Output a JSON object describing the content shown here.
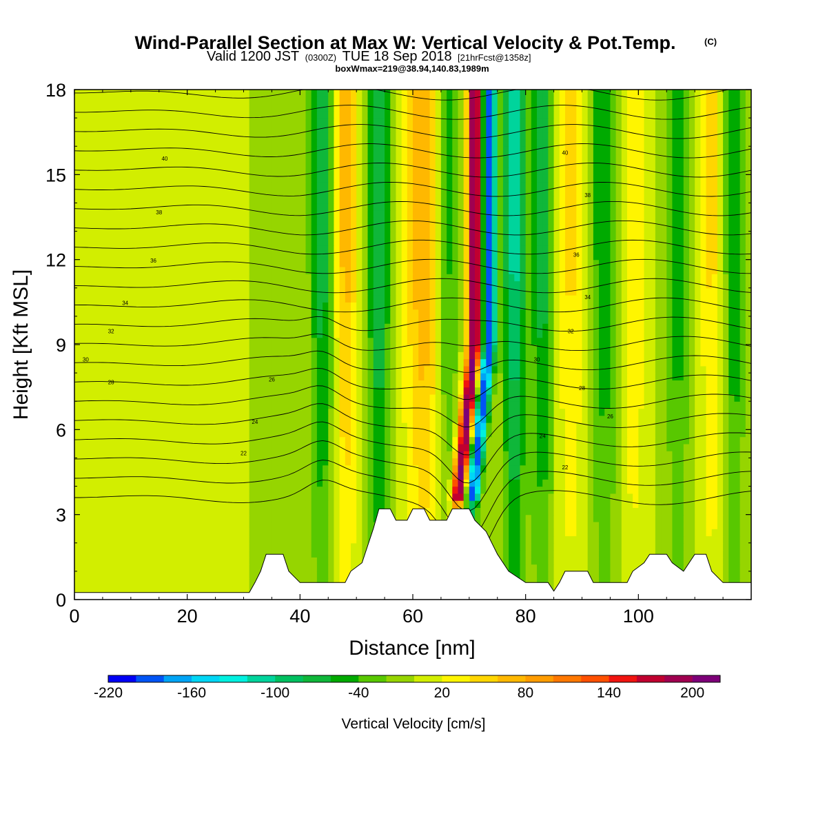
{
  "title": {
    "main": "Wind-Parallel Section at Max W: Vertical Velocity & Pot.Temp.",
    "mark": "(C)",
    "valid_prefix": "Valid 1200 JST",
    "valid_utc": "(0300Z)",
    "valid_date": "TUE 18 Sep 2018",
    "forecast": "[21hrFcst@1358z]",
    "box": "boxWmax=219@38.94,140.83,1989m"
  },
  "chart_data": {
    "type": "heatmap",
    "title": "Wind-Parallel Section at Max W: Vertical Velocity & Pot.Temp.",
    "xlabel": "Distance [nm]",
    "ylabel": "Height [Kft MSL]",
    "xlim": [
      0,
      120
    ],
    "ylim": [
      0,
      18
    ],
    "x_ticks": [
      0,
      20,
      40,
      60,
      80,
      100
    ],
    "y_ticks": [
      0,
      3,
      6,
      9,
      12,
      15,
      18
    ],
    "colorbar": {
      "title": "Vertical Velocity [cm/s]",
      "min": -220,
      "max": 220,
      "step": 20,
      "tick_values": [
        -220,
        -160,
        -100,
        -40,
        20,
        80,
        140,
        200
      ],
      "colors": [
        "#0000f5",
        "#0054f5",
        "#00a4f5",
        "#00d6f5",
        "#00f0e0",
        "#00d49c",
        "#00c060",
        "#0fb73a",
        "#00aa00",
        "#58c800",
        "#96d500",
        "#d2ee00",
        "#fff500",
        "#ffd600",
        "#ffb800",
        "#ff9c00",
        "#ff7800",
        "#ff5000",
        "#f01410",
        "#c00030",
        "#a00050",
        "#7d0078"
      ]
    },
    "w_field": {
      "description_units": "cm/s",
      "background": 0,
      "features": [
        {
          "x": 44,
          "w": -75,
          "sx": 2.2
        },
        {
          "x": 48,
          "w": 70,
          "sx": 2.2
        },
        {
          "x": 54,
          "w": -85,
          "sx": 2.0
        },
        {
          "x": 62,
          "w": 80,
          "sx": 3.5
        },
        {
          "x": 66,
          "w": -60,
          "sx": 2.0
        },
        {
          "x": 71,
          "w": 210,
          "sx": 1.3
        },
        {
          "x": 73.5,
          "w": -200,
          "sx": 1.2
        },
        {
          "x": 78,
          "w": -110,
          "sx": 2.0
        },
        {
          "x": 83,
          "w": -75,
          "sx": 2.0
        },
        {
          "x": 88,
          "w": 45,
          "sx": 2.5
        },
        {
          "x": 94,
          "w": -60,
          "sx": 2.5
        },
        {
          "x": 99,
          "w": 40,
          "sx": 2.5
        },
        {
          "x": 107,
          "w": -55,
          "sx": 2.0
        },
        {
          "x": 113,
          "w": 45,
          "sx": 2.0
        },
        {
          "x": 117,
          "w": -60,
          "sx": 1.8
        }
      ]
    },
    "theta_contours": {
      "units": "C",
      "interval": 1,
      "labels": [
        {
          "value": "40",
          "x": 16,
          "y": 15.5
        },
        {
          "value": "38",
          "x": 15,
          "y": 13.6
        },
        {
          "value": "36",
          "x": 14,
          "y": 11.9
        },
        {
          "value": "34",
          "x": 9,
          "y": 10.4
        },
        {
          "value": "32",
          "x": 6.5,
          "y": 9.4
        },
        {
          "value": "30",
          "x": 2,
          "y": 8.4
        },
        {
          "value": "28",
          "x": 6.5,
          "y": 7.6
        },
        {
          "value": "26",
          "x": 35,
          "y": 7.7
        },
        {
          "value": "24",
          "x": 32,
          "y": 6.2
        },
        {
          "value": "22",
          "x": 30,
          "y": 5.1
        },
        {
          "value": "40",
          "x": 87,
          "y": 15.7
        },
        {
          "value": "38",
          "x": 91,
          "y": 14.2
        },
        {
          "value": "36",
          "x": 89,
          "y": 12.1
        },
        {
          "value": "34",
          "x": 91,
          "y": 10.6
        },
        {
          "value": "32",
          "x": 88,
          "y": 9.4
        },
        {
          "value": "30",
          "x": 82,
          "y": 8.4
        },
        {
          "value": "28",
          "x": 90,
          "y": 7.4
        },
        {
          "value": "26",
          "x": 95,
          "y": 6.4
        },
        {
          "value": "24",
          "x": 83,
          "y": 5.7
        },
        {
          "value": "22",
          "x": 87,
          "y": 4.6
        }
      ]
    },
    "terrain_kft": [
      [
        0,
        0.25
      ],
      [
        31,
        0.25
      ],
      [
        32,
        0.6
      ],
      [
        33,
        1.0
      ],
      [
        34,
        1.6
      ],
      [
        37,
        1.6
      ],
      [
        38,
        1.0
      ],
      [
        40,
        0.6
      ],
      [
        48,
        0.6
      ],
      [
        49,
        1.0
      ],
      [
        51,
        1.3
      ],
      [
        52,
        1.9
      ],
      [
        53,
        2.5
      ],
      [
        54,
        3.2
      ],
      [
        56,
        3.2
      ],
      [
        57,
        2.8
      ],
      [
        59,
        2.8
      ],
      [
        60,
        3.2
      ],
      [
        62,
        3.2
      ],
      [
        63,
        2.8
      ],
      [
        66,
        2.8
      ],
      [
        67,
        3.2
      ],
      [
        70,
        3.2
      ],
      [
        71,
        2.8
      ],
      [
        73,
        2.4
      ],
      [
        75,
        1.6
      ],
      [
        77,
        1.0
      ],
      [
        80,
        0.6
      ],
      [
        84,
        0.6
      ],
      [
        85,
        0.3
      ],
      [
        86,
        0.6
      ],
      [
        87,
        1.0
      ],
      [
        91,
        1.0
      ],
      [
        92,
        0.6
      ],
      [
        98,
        0.6
      ],
      [
        99,
        1.0
      ],
      [
        101,
        1.3
      ],
      [
        102,
        1.6
      ],
      [
        105,
        1.6
      ],
      [
        106,
        1.3
      ],
      [
        108,
        1.0
      ],
      [
        109,
        1.3
      ],
      [
        110,
        1.6
      ],
      [
        112,
        1.6
      ],
      [
        113,
        1.0
      ],
      [
        115,
        0.6
      ],
      [
        120,
        0.6
      ]
    ]
  }
}
